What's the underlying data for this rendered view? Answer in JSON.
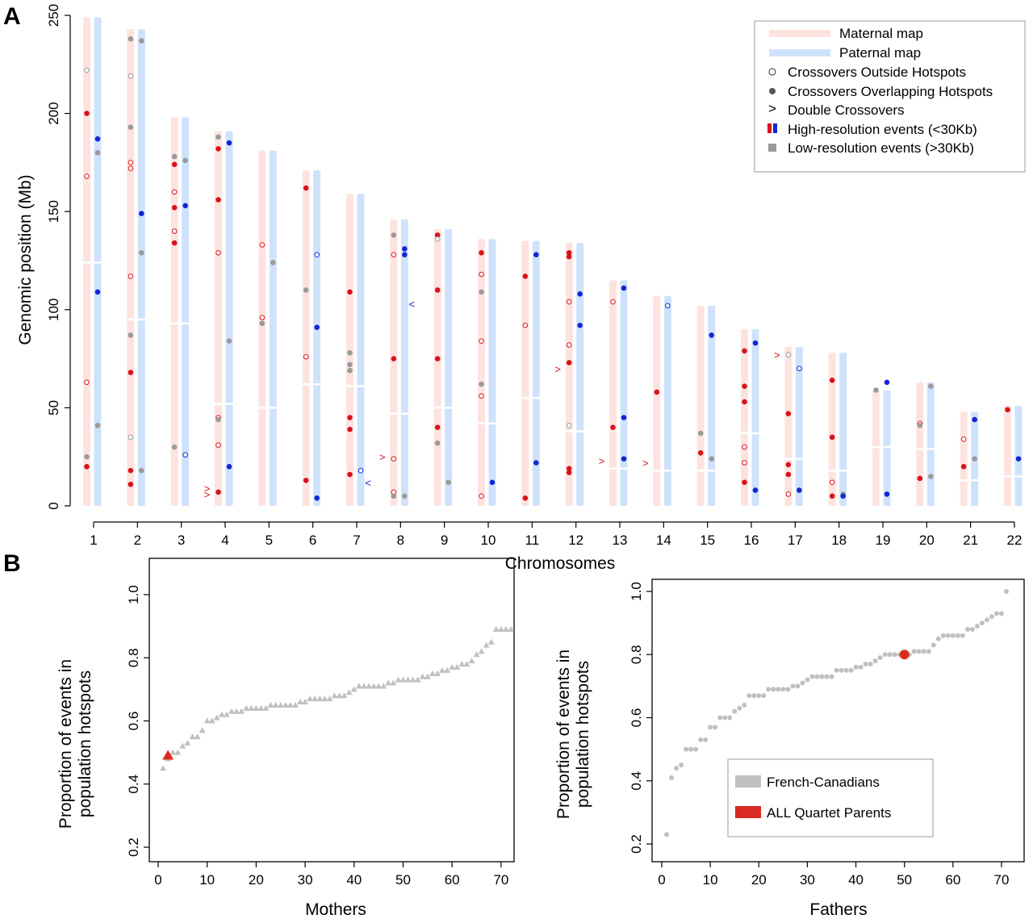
{
  "panels": {
    "a": "A",
    "b": "B"
  },
  "colors": {
    "maternal_bar": "#fde3df",
    "paternal_bar": "#cfe2fb",
    "maternal_high": "#d9131a",
    "paternal_high": "#1326d6",
    "low_res": "#9a9a9a",
    "population": "#c0c0c0",
    "quartet": "#d92b1f"
  },
  "legend_a": {
    "maternal": "Maternal map",
    "paternal": "Paternal map",
    "outside": "Crossovers Outside Hotspots",
    "overlapping": "Crossovers Overlapping Hotspots",
    "double": "Double Crossovers",
    "double_symbol": ">",
    "high": "High-resolution events (<30Kb)",
    "low": "Low-resolution events (>30Kb)"
  },
  "legend_b": {
    "population": "French-Canadians",
    "quartet": "ALL Quartet Parents"
  },
  "chart_data": [
    {
      "type": "scatter",
      "panel": "A",
      "xlabel": "Chromosomes",
      "ylabel": "Genomic position (Mb)",
      "ylim": [
        0,
        250
      ],
      "yticks": [
        0,
        50,
        100,
        150,
        200,
        250
      ],
      "categories": [
        "1",
        "2",
        "3",
        "4",
        "5",
        "6",
        "7",
        "8",
        "9",
        "10",
        "11",
        "12",
        "13",
        "14",
        "15",
        "16",
        "17",
        "18",
        "19",
        "20",
        "21",
        "22"
      ],
      "lengths": [
        249,
        243,
        198,
        191,
        181,
        171,
        159,
        146,
        141,
        136,
        135,
        134,
        115,
        107,
        102,
        90,
        81,
        78,
        59,
        63,
        48,
        51
      ],
      "centromeres": [
        124,
        95,
        93,
        52,
        50,
        62,
        61,
        47,
        50,
        42,
        55,
        38,
        19,
        18,
        18,
        37,
        24,
        18,
        30,
        29,
        13,
        15
      ],
      "maternal_events": [
        {
          "chr": 1,
          "pos": 222,
          "kind": "low-out"
        },
        {
          "chr": 1,
          "pos": 200,
          "kind": "high-over"
        },
        {
          "chr": 1,
          "pos": 168,
          "kind": "high-out"
        },
        {
          "chr": 1,
          "pos": 63,
          "kind": "high-out"
        },
        {
          "chr": 1,
          "pos": 25,
          "kind": "low-over"
        },
        {
          "chr": 1,
          "pos": 20,
          "kind": "high-over"
        },
        {
          "chr": 2,
          "pos": 238,
          "kind": "low-over"
        },
        {
          "chr": 2,
          "pos": 219,
          "kind": "low-out"
        },
        {
          "chr": 2,
          "pos": 193,
          "kind": "low-over"
        },
        {
          "chr": 2,
          "pos": 175,
          "kind": "high-out"
        },
        {
          "chr": 2,
          "pos": 172,
          "kind": "high-out"
        },
        {
          "chr": 2,
          "pos": 117,
          "kind": "high-out"
        },
        {
          "chr": 2,
          "pos": 87,
          "kind": "low-over"
        },
        {
          "chr": 2,
          "pos": 68,
          "kind": "high-over"
        },
        {
          "chr": 2,
          "pos": 35,
          "kind": "low-out"
        },
        {
          "chr": 2,
          "pos": 18,
          "kind": "high-over"
        },
        {
          "chr": 2,
          "pos": 11,
          "kind": "high-over"
        },
        {
          "chr": 3,
          "pos": 178,
          "kind": "low-over"
        },
        {
          "chr": 3,
          "pos": 174,
          "kind": "high-over"
        },
        {
          "chr": 3,
          "pos": 160,
          "kind": "high-out"
        },
        {
          "chr": 3,
          "pos": 152,
          "kind": "high-over"
        },
        {
          "chr": 3,
          "pos": 140,
          "kind": "high-out"
        },
        {
          "chr": 3,
          "pos": 134,
          "kind": "high-over"
        },
        {
          "chr": 3,
          "pos": 30,
          "kind": "low-over"
        },
        {
          "chr": 4,
          "pos": 188,
          "kind": "low-over"
        },
        {
          "chr": 4,
          "pos": 182,
          "kind": "high-over"
        },
        {
          "chr": 4,
          "pos": 156,
          "kind": "high-over"
        },
        {
          "chr": 4,
          "pos": 129,
          "kind": "high-out"
        },
        {
          "chr": 4,
          "pos": 45,
          "kind": "high-out"
        },
        {
          "chr": 4,
          "pos": 44,
          "kind": "low-over"
        },
        {
          "chr": 4,
          "pos": 31,
          "kind": "high-out"
        },
        {
          "chr": 4,
          "pos": 7,
          "kind": "high-over"
        },
        {
          "chr": 4,
          "pos": 9,
          "kind": "double"
        },
        {
          "chr": 4,
          "pos": 6,
          "kind": "double"
        },
        {
          "chr": 5,
          "pos": 133,
          "kind": "high-out"
        },
        {
          "chr": 5,
          "pos": 96,
          "kind": "high-out"
        },
        {
          "chr": 5,
          "pos": 93,
          "kind": "low-over"
        },
        {
          "chr": 6,
          "pos": 162,
          "kind": "high-over"
        },
        {
          "chr": 6,
          "pos": 110,
          "kind": "low-over"
        },
        {
          "chr": 6,
          "pos": 76,
          "kind": "high-out"
        },
        {
          "chr": 6,
          "pos": 13,
          "kind": "high-over"
        },
        {
          "chr": 7,
          "pos": 109,
          "kind": "high-over"
        },
        {
          "chr": 7,
          "pos": 78,
          "kind": "low-over"
        },
        {
          "chr": 7,
          "pos": 72,
          "kind": "low-over"
        },
        {
          "chr": 7,
          "pos": 69,
          "kind": "low-over"
        },
        {
          "chr": 7,
          "pos": 45,
          "kind": "high-over"
        },
        {
          "chr": 7,
          "pos": 39,
          "kind": "high-over"
        },
        {
          "chr": 7,
          "pos": 16,
          "kind": "high-over"
        },
        {
          "chr": 8,
          "pos": 138,
          "kind": "low-over"
        },
        {
          "chr": 8,
          "pos": 128,
          "kind": "high-out"
        },
        {
          "chr": 8,
          "pos": 75,
          "kind": "high-over"
        },
        {
          "chr": 8,
          "pos": 24,
          "kind": "high-out"
        },
        {
          "chr": 8,
          "pos": 25,
          "kind": "double"
        },
        {
          "chr": 8,
          "pos": 7,
          "kind": "high-out"
        },
        {
          "chr": 8,
          "pos": 5,
          "kind": "low-over"
        },
        {
          "chr": 9,
          "pos": 138,
          "kind": "high-over"
        },
        {
          "chr": 9,
          "pos": 136,
          "kind": "low-out"
        },
        {
          "chr": 9,
          "pos": 110,
          "kind": "high-over"
        },
        {
          "chr": 9,
          "pos": 75,
          "kind": "high-over"
        },
        {
          "chr": 9,
          "pos": 40,
          "kind": "high-over"
        },
        {
          "chr": 9,
          "pos": 32,
          "kind": "low-over"
        },
        {
          "chr": 10,
          "pos": 129,
          "kind": "high-over"
        },
        {
          "chr": 10,
          "pos": 118,
          "kind": "high-out"
        },
        {
          "chr": 10,
          "pos": 109,
          "kind": "low-over"
        },
        {
          "chr": 10,
          "pos": 84,
          "kind": "high-out"
        },
        {
          "chr": 10,
          "pos": 62,
          "kind": "low-over"
        },
        {
          "chr": 10,
          "pos": 56,
          "kind": "high-out"
        },
        {
          "chr": 10,
          "pos": 5,
          "kind": "high-out"
        },
        {
          "chr": 11,
          "pos": 117,
          "kind": "high-over"
        },
        {
          "chr": 11,
          "pos": 92,
          "kind": "high-out"
        },
        {
          "chr": 11,
          "pos": 4,
          "kind": "high-over"
        },
        {
          "chr": 12,
          "pos": 129,
          "kind": "high-over"
        },
        {
          "chr": 12,
          "pos": 127,
          "kind": "high-over"
        },
        {
          "chr": 12,
          "pos": 104,
          "kind": "high-out"
        },
        {
          "chr": 12,
          "pos": 82,
          "kind": "high-out"
        },
        {
          "chr": 12,
          "pos": 73,
          "kind": "high-over"
        },
        {
          "chr": 12,
          "pos": 70,
          "kind": "double"
        },
        {
          "chr": 12,
          "pos": 41,
          "kind": "low-out"
        },
        {
          "chr": 12,
          "pos": 19,
          "kind": "high-over"
        },
        {
          "chr": 12,
          "pos": 17,
          "kind": "high-over"
        },
        {
          "chr": 13,
          "pos": 104,
          "kind": "high-out"
        },
        {
          "chr": 13,
          "pos": 40,
          "kind": "high-over"
        },
        {
          "chr": 13,
          "pos": 23,
          "kind": "double"
        },
        {
          "chr": 14,
          "pos": 58,
          "kind": "high-over"
        },
        {
          "chr": 14,
          "pos": 22,
          "kind": "double"
        },
        {
          "chr": 15,
          "pos": 37,
          "kind": "low-over"
        },
        {
          "chr": 15,
          "pos": 27,
          "kind": "high-over"
        },
        {
          "chr": 16,
          "pos": 79,
          "kind": "high-over"
        },
        {
          "chr": 16,
          "pos": 61,
          "kind": "high-over"
        },
        {
          "chr": 16,
          "pos": 53,
          "kind": "high-over"
        },
        {
          "chr": 16,
          "pos": 30,
          "kind": "high-out"
        },
        {
          "chr": 16,
          "pos": 22,
          "kind": "high-out"
        },
        {
          "chr": 16,
          "pos": 12,
          "kind": "high-over"
        },
        {
          "chr": 17,
          "pos": 77,
          "kind": "low-out"
        },
        {
          "chr": 17,
          "pos": 77,
          "kind": "double"
        },
        {
          "chr": 17,
          "pos": 47,
          "kind": "high-over"
        },
        {
          "chr": 17,
          "pos": 21,
          "kind": "high-over"
        },
        {
          "chr": 17,
          "pos": 16,
          "kind": "high-over"
        },
        {
          "chr": 17,
          "pos": 6,
          "kind": "high-out"
        },
        {
          "chr": 18,
          "pos": 64,
          "kind": "high-over"
        },
        {
          "chr": 18,
          "pos": 35,
          "kind": "high-over"
        },
        {
          "chr": 18,
          "pos": 12,
          "kind": "high-out"
        },
        {
          "chr": 18,
          "pos": 5,
          "kind": "high-over"
        },
        {
          "chr": 19,
          "pos": 59,
          "kind": "low-over"
        },
        {
          "chr": 20,
          "pos": 42,
          "kind": "high-out"
        },
        {
          "chr": 20,
          "pos": 41,
          "kind": "low-over"
        },
        {
          "chr": 20,
          "pos": 14,
          "kind": "high-over"
        },
        {
          "chr": 21,
          "pos": 34,
          "kind": "high-out"
        },
        {
          "chr": 21,
          "pos": 20,
          "kind": "high-over"
        },
        {
          "chr": 22,
          "pos": 49,
          "kind": "high-over"
        }
      ],
      "paternal_events": [
        {
          "chr": 1,
          "pos": 187,
          "kind": "high-over"
        },
        {
          "chr": 1,
          "pos": 180,
          "kind": "low-over"
        },
        {
          "chr": 1,
          "pos": 109,
          "kind": "high-over"
        },
        {
          "chr": 1,
          "pos": 41,
          "kind": "low-over"
        },
        {
          "chr": 2,
          "pos": 237,
          "kind": "low-over"
        },
        {
          "chr": 2,
          "pos": 149,
          "kind": "high-over"
        },
        {
          "chr": 2,
          "pos": 129,
          "kind": "low-over"
        },
        {
          "chr": 2,
          "pos": 18,
          "kind": "low-over"
        },
        {
          "chr": 3,
          "pos": 176,
          "kind": "low-over"
        },
        {
          "chr": 3,
          "pos": 153,
          "kind": "high-over"
        },
        {
          "chr": 3,
          "pos": 26,
          "kind": "high-out"
        },
        {
          "chr": 4,
          "pos": 185,
          "kind": "high-over"
        },
        {
          "chr": 4,
          "pos": 84,
          "kind": "low-over"
        },
        {
          "chr": 4,
          "pos": 20,
          "kind": "high-over"
        },
        {
          "chr": 5,
          "pos": 124,
          "kind": "low-over"
        },
        {
          "chr": 6,
          "pos": 128,
          "kind": "high-out"
        },
        {
          "chr": 6,
          "pos": 91,
          "kind": "high-over"
        },
        {
          "chr": 6,
          "pos": 4,
          "kind": "high-over"
        },
        {
          "chr": 7,
          "pos": 18,
          "kind": "high-out"
        },
        {
          "chr": 7,
          "pos": 12,
          "kind": "double"
        },
        {
          "chr": 8,
          "pos": 131,
          "kind": "high-over"
        },
        {
          "chr": 8,
          "pos": 128,
          "kind": "high-over"
        },
        {
          "chr": 8,
          "pos": 103,
          "kind": "double"
        },
        {
          "chr": 8,
          "pos": 5,
          "kind": "low-over"
        },
        {
          "chr": 9,
          "pos": 12,
          "kind": "low-over"
        },
        {
          "chr": 10,
          "pos": 12,
          "kind": "high-over"
        },
        {
          "chr": 11,
          "pos": 128,
          "kind": "high-over"
        },
        {
          "chr": 11,
          "pos": 22,
          "kind": "high-over"
        },
        {
          "chr": 12,
          "pos": 108,
          "kind": "high-over"
        },
        {
          "chr": 12,
          "pos": 92,
          "kind": "high-over"
        },
        {
          "chr": 13,
          "pos": 111,
          "kind": "high-over"
        },
        {
          "chr": 13,
          "pos": 45,
          "kind": "high-over"
        },
        {
          "chr": 13,
          "pos": 24,
          "kind": "high-over"
        },
        {
          "chr": 14,
          "pos": 102,
          "kind": "high-out"
        },
        {
          "chr": 15,
          "pos": 87,
          "kind": "high-over"
        },
        {
          "chr": 15,
          "pos": 24,
          "kind": "low-over"
        },
        {
          "chr": 16,
          "pos": 83,
          "kind": "high-over"
        },
        {
          "chr": 16,
          "pos": 8,
          "kind": "high-over"
        },
        {
          "chr": 17,
          "pos": 70,
          "kind": "high-out"
        },
        {
          "chr": 17,
          "pos": 8,
          "kind": "high-over"
        },
        {
          "chr": 18,
          "pos": 6,
          "kind": "low-over"
        },
        {
          "chr": 18,
          "pos": 5,
          "kind": "high-over"
        },
        {
          "chr": 19,
          "pos": 63,
          "kind": "high-over"
        },
        {
          "chr": 19,
          "pos": 6,
          "kind": "high-over"
        },
        {
          "chr": 20,
          "pos": 61,
          "kind": "low-over"
        },
        {
          "chr": 20,
          "pos": 15,
          "kind": "low-over"
        },
        {
          "chr": 21,
          "pos": 44,
          "kind": "high-over"
        },
        {
          "chr": 21,
          "pos": 24,
          "kind": "low-over"
        },
        {
          "chr": 22,
          "pos": 24,
          "kind": "high-over"
        }
      ]
    },
    {
      "type": "scatter",
      "panel": "B-left",
      "xlabel": "Mothers",
      "ylabel": "Proportion of events in population hotspots",
      "xlim": [
        0,
        72
      ],
      "ylim": [
        0.2,
        1.0
      ],
      "xticks": [
        0,
        10,
        20,
        30,
        40,
        50,
        60,
        70
      ],
      "yticks": [
        0.2,
        0.4,
        0.6,
        0.8,
        1.0
      ],
      "marker": "triangle",
      "values": [
        0.45,
        0.48,
        0.5,
        0.5,
        0.52,
        0.53,
        0.55,
        0.55,
        0.57,
        0.6,
        0.6,
        0.61,
        0.62,
        0.62,
        0.63,
        0.63,
        0.63,
        0.64,
        0.64,
        0.64,
        0.64,
        0.64,
        0.65,
        0.65,
        0.65,
        0.65,
        0.65,
        0.65,
        0.66,
        0.66,
        0.67,
        0.67,
        0.67,
        0.67,
        0.67,
        0.68,
        0.68,
        0.68,
        0.69,
        0.7,
        0.71,
        0.71,
        0.71,
        0.71,
        0.71,
        0.71,
        0.72,
        0.72,
        0.73,
        0.73,
        0.73,
        0.73,
        0.73,
        0.74,
        0.74,
        0.75,
        0.75,
        0.76,
        0.76,
        0.77,
        0.77,
        0.78,
        0.78,
        0.79,
        0.81,
        0.82,
        0.84,
        0.85,
        0.89,
        0.89,
        0.89,
        0.89
      ],
      "highlight": {
        "x": 2,
        "y": 0.49
      }
    },
    {
      "type": "scatter",
      "panel": "B-right",
      "xlabel": "Fathers",
      "ylabel": "Proportion of events in population hotspots",
      "xlim": [
        0,
        72
      ],
      "ylim": [
        0.2,
        1.0
      ],
      "xticks": [
        0,
        10,
        20,
        30,
        40,
        50,
        60,
        70
      ],
      "yticks": [
        0.2,
        0.4,
        0.6,
        0.8,
        1.0
      ],
      "marker": "circle",
      "values": [
        0.23,
        0.41,
        0.44,
        0.45,
        0.5,
        0.5,
        0.5,
        0.53,
        0.53,
        0.57,
        0.57,
        0.6,
        0.6,
        0.6,
        0.62,
        0.63,
        0.64,
        0.67,
        0.67,
        0.67,
        0.67,
        0.69,
        0.69,
        0.69,
        0.69,
        0.69,
        0.7,
        0.7,
        0.71,
        0.72,
        0.73,
        0.73,
        0.73,
        0.73,
        0.73,
        0.75,
        0.75,
        0.75,
        0.75,
        0.76,
        0.76,
        0.77,
        0.77,
        0.78,
        0.79,
        0.8,
        0.8,
        0.8,
        0.8,
        0.8,
        0.8,
        0.81,
        0.81,
        0.81,
        0.81,
        0.83,
        0.85,
        0.86,
        0.86,
        0.86,
        0.86,
        0.86,
        0.88,
        0.88,
        0.89,
        0.9,
        0.91,
        0.92,
        0.93,
        0.93,
        1.0
      ],
      "highlight": {
        "x": 50,
        "y": 0.8
      }
    }
  ]
}
